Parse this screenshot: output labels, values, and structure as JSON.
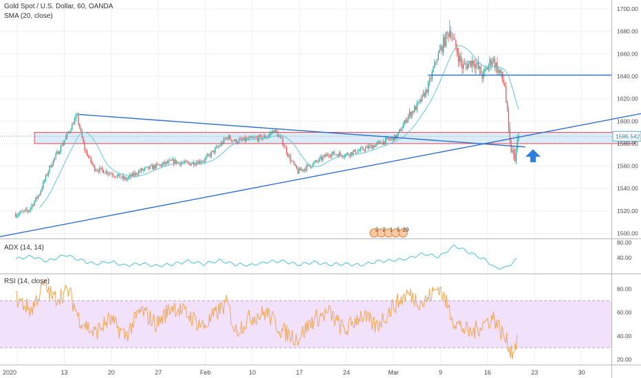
{
  "main_pane": {
    "title": "Gold Spot / U.S. Dollar, 60, OANDA",
    "indicator": "SMA (20, close)",
    "last_price": "1586.542"
  },
  "adx_pane": {
    "title": "ADX (14, 14)"
  },
  "rsi_pane": {
    "title": "RSI (14, close)"
  },
  "events": {
    "badges": [
      "3",
      "2",
      "1",
      "5",
      "29"
    ]
  },
  "colors": {
    "up": "#26a69a",
    "down": "#ef5350",
    "sma": "#5fc9d6",
    "trendline": "#2f6fcd",
    "zone_fill": "#d5e7f7",
    "zone_border": "#e2454d",
    "adx": "#4ec2d4",
    "rsi": "#f3a64f",
    "rsi_band": "#f1e1fb",
    "arrow": "#2f7fe0",
    "grid": "#eef0f3"
  },
  "chart_data": [
    {
      "type": "candlestick",
      "pane": "price",
      "title": "Gold Spot / U.S. Dollar, 60, OANDA",
      "x_ticks": [
        "2020",
        "13",
        "20",
        "27",
        "Feb",
        "10",
        "17",
        "24",
        "Mar",
        "9",
        "16",
        "23",
        "30"
      ],
      "y_ticks": [
        1500,
        1520,
        1540,
        1560,
        1580,
        1600,
        1620,
        1640,
        1660,
        1680,
        1700
      ],
      "ylim": [
        1496,
        1708
      ],
      "xlim": [
        -1,
        38
      ],
      "path_anchors": [
        [
          0,
          1517
        ],
        [
          0.8,
          1520
        ],
        [
          1.5,
          1535
        ],
        [
          2.2,
          1560
        ],
        [
          2.8,
          1575
        ],
        [
          3.3,
          1588
        ],
        [
          3.9,
          1605
        ],
        [
          4.4,
          1575
        ],
        [
          5,
          1558
        ],
        [
          6,
          1554
        ],
        [
          7,
          1548
        ],
        [
          8,
          1556
        ],
        [
          9,
          1560
        ],
        [
          10,
          1564
        ],
        [
          11,
          1562
        ],
        [
          12,
          1565
        ],
        [
          13,
          1578
        ],
        [
          13.5,
          1586
        ],
        [
          14,
          1582
        ],
        [
          15,
          1584
        ],
        [
          16,
          1586
        ],
        [
          16.5,
          1592
        ],
        [
          17,
          1582
        ],
        [
          17.5,
          1566
        ],
        [
          18,
          1555
        ],
        [
          19,
          1562
        ],
        [
          20,
          1571
        ],
        [
          21,
          1570
        ],
        [
          22,
          1574
        ],
        [
          22.8,
          1578
        ],
        [
          23.5,
          1582
        ],
        [
          24.3,
          1586
        ],
        [
          25,
          1604
        ],
        [
          25.7,
          1615
        ],
        [
          26.3,
          1630
        ],
        [
          26.8,
          1654
        ],
        [
          27.3,
          1670
        ],
        [
          27.7,
          1682
        ],
        [
          28,
          1668
        ],
        [
          28.5,
          1648
        ],
        [
          29.2,
          1654
        ],
        [
          29.8,
          1640
        ],
        [
          30.4,
          1656
        ],
        [
          30.8,
          1645
        ],
        [
          31.2,
          1632
        ],
        [
          31.5,
          1580
        ],
        [
          31.8,
          1566
        ],
        [
          32.1,
          1586
        ]
      ],
      "sma_period": 20,
      "key_high": 1690,
      "key_low": 1564,
      "last": 1586.542,
      "annotations": {
        "resistance_level": 1641,
        "support_zone": [
          1580,
          1590
        ],
        "trendline_descending": [
          [
            4,
            1606
          ],
          [
            32.5,
            1577
          ]
        ],
        "trendline_ascending": [
          [
            -1,
            1497
          ],
          [
            40,
            1607
          ]
        ],
        "arrow": {
          "x": 33,
          "y_tip": 1575
        }
      }
    },
    {
      "type": "line",
      "pane": "adx",
      "title": "ADX (14, 14)",
      "y_ticks": [
        40,
        80
      ],
      "ylim": [
        5,
        82
      ],
      "anchors": [
        [
          0,
          37
        ],
        [
          1,
          44
        ],
        [
          2,
          32
        ],
        [
          3.2,
          47
        ],
        [
          4,
          36
        ],
        [
          5,
          26
        ],
        [
          6,
          31
        ],
        [
          7,
          22
        ],
        [
          8,
          27
        ],
        [
          9,
          21
        ],
        [
          10,
          25
        ],
        [
          11,
          32
        ],
        [
          12,
          26
        ],
        [
          13,
          34
        ],
        [
          14,
          25
        ],
        [
          15,
          23
        ],
        [
          16,
          30
        ],
        [
          17,
          33
        ],
        [
          18,
          24
        ],
        [
          19,
          30
        ],
        [
          20,
          24
        ],
        [
          21,
          26
        ],
        [
          22,
          23
        ],
        [
          23,
          31
        ],
        [
          24,
          34
        ],
        [
          25,
          38
        ],
        [
          26,
          50
        ],
        [
          27,
          42
        ],
        [
          28,
          68
        ],
        [
          29,
          52
        ],
        [
          30,
          34
        ],
        [
          30.6,
          16
        ],
        [
          31.3,
          17
        ],
        [
          32,
          38
        ]
      ]
    },
    {
      "type": "line",
      "pane": "rsi",
      "title": "RSI (14, close)",
      "y_ticks": [
        20,
        40,
        60,
        80
      ],
      "ylim": [
        16,
        92
      ],
      "band": [
        30,
        70
      ],
      "anchors": [
        [
          0,
          72
        ],
        [
          1,
          62
        ],
        [
          1.8,
          84
        ],
        [
          2.4,
          72
        ],
        [
          3.4,
          78
        ],
        [
          4,
          56
        ],
        [
          5,
          42
        ],
        [
          6,
          54
        ],
        [
          7,
          40
        ],
        [
          8,
          62
        ],
        [
          9,
          50
        ],
        [
          10,
          66
        ],
        [
          11,
          58
        ],
        [
          12,
          48
        ],
        [
          13,
          62
        ],
        [
          13.5,
          68
        ],
        [
          14,
          44
        ],
        [
          15,
          56
        ],
        [
          16,
          60
        ],
        [
          17,
          44
        ],
        [
          18,
          38
        ],
        [
          19,
          54
        ],
        [
          20,
          60
        ],
        [
          21,
          44
        ],
        [
          22,
          58
        ],
        [
          23,
          48
        ],
        [
          24,
          64
        ],
        [
          25,
          76
        ],
        [
          26,
          68
        ],
        [
          27,
          82
        ],
        [
          28,
          52
        ],
        [
          29,
          42
        ],
        [
          29.8,
          50
        ],
        [
          30.5,
          56
        ],
        [
          31.2,
          38
        ],
        [
          31.7,
          26
        ],
        [
          32,
          38
        ]
      ]
    }
  ]
}
